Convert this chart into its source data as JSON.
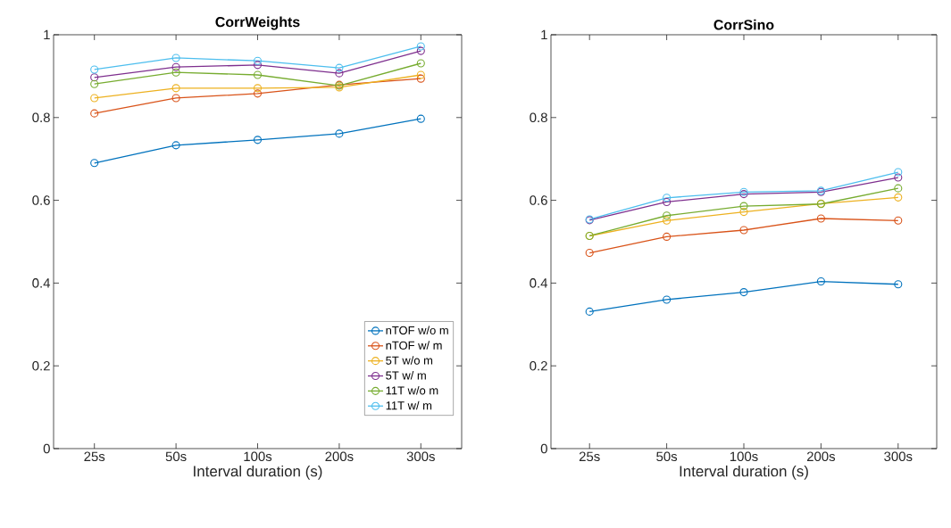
{
  "chart_data": [
    {
      "type": "line",
      "title": "CorrWeights",
      "xlabel": "Interval duration (s)",
      "categories": [
        "25s",
        "50s",
        "100s",
        "200s",
        "300s"
      ],
      "ylim": [
        0,
        1
      ],
      "yticks": [
        0,
        0.2,
        0.4,
        0.6,
        0.8,
        1
      ],
      "grid": false,
      "marker": "circle",
      "legend": "bottom right",
      "series": [
        {
          "name": "nTOF w/o m",
          "color": "#0072bd",
          "values": [
            0.69,
            0.733,
            0.746,
            0.761,
            0.797
          ]
        },
        {
          "name": "nTOF w/ m",
          "color": "#d95319",
          "values": [
            0.81,
            0.847,
            0.858,
            0.879,
            0.894
          ]
        },
        {
          "name": "5T w/o m",
          "color": "#edb120",
          "values": [
            0.847,
            0.871,
            0.871,
            0.873,
            0.903
          ]
        },
        {
          "name": "5T w/ m",
          "color": "#7e2f8e",
          "values": [
            0.897,
            0.922,
            0.927,
            0.907,
            0.961
          ]
        },
        {
          "name": "11T w/o m",
          "color": "#77ac30",
          "values": [
            0.881,
            0.909,
            0.903,
            0.877,
            0.931
          ]
        },
        {
          "name": "11T w/ m",
          "color": "#4dbeee",
          "values": [
            0.916,
            0.944,
            0.937,
            0.92,
            0.972
          ]
        }
      ]
    },
    {
      "type": "line",
      "title": "CorrSino",
      "xlabel": "Interval duration (s)",
      "categories": [
        "25s",
        "50s",
        "100s",
        "200s",
        "300s"
      ],
      "ylim": [
        0,
        1
      ],
      "yticks": [
        0,
        0.2,
        0.4,
        0.6,
        0.8,
        1
      ],
      "grid": false,
      "marker": "circle",
      "series": [
        {
          "color": "#0072bd",
          "values": [
            0.331,
            0.36,
            0.378,
            0.404,
            0.397
          ]
        },
        {
          "color": "#d95319",
          "values": [
            0.473,
            0.512,
            0.528,
            0.556,
            0.551
          ]
        },
        {
          "color": "#edb120",
          "values": [
            0.514,
            0.551,
            0.572,
            0.592,
            0.607
          ]
        },
        {
          "color": "#7e2f8e",
          "values": [
            0.552,
            0.596,
            0.615,
            0.62,
            0.655
          ]
        },
        {
          "color": "#77ac30",
          "values": [
            0.514,
            0.563,
            0.586,
            0.591,
            0.629
          ]
        },
        {
          "color": "#4dbeee",
          "values": [
            0.554,
            0.606,
            0.62,
            0.623,
            0.668
          ]
        }
      ]
    }
  ]
}
